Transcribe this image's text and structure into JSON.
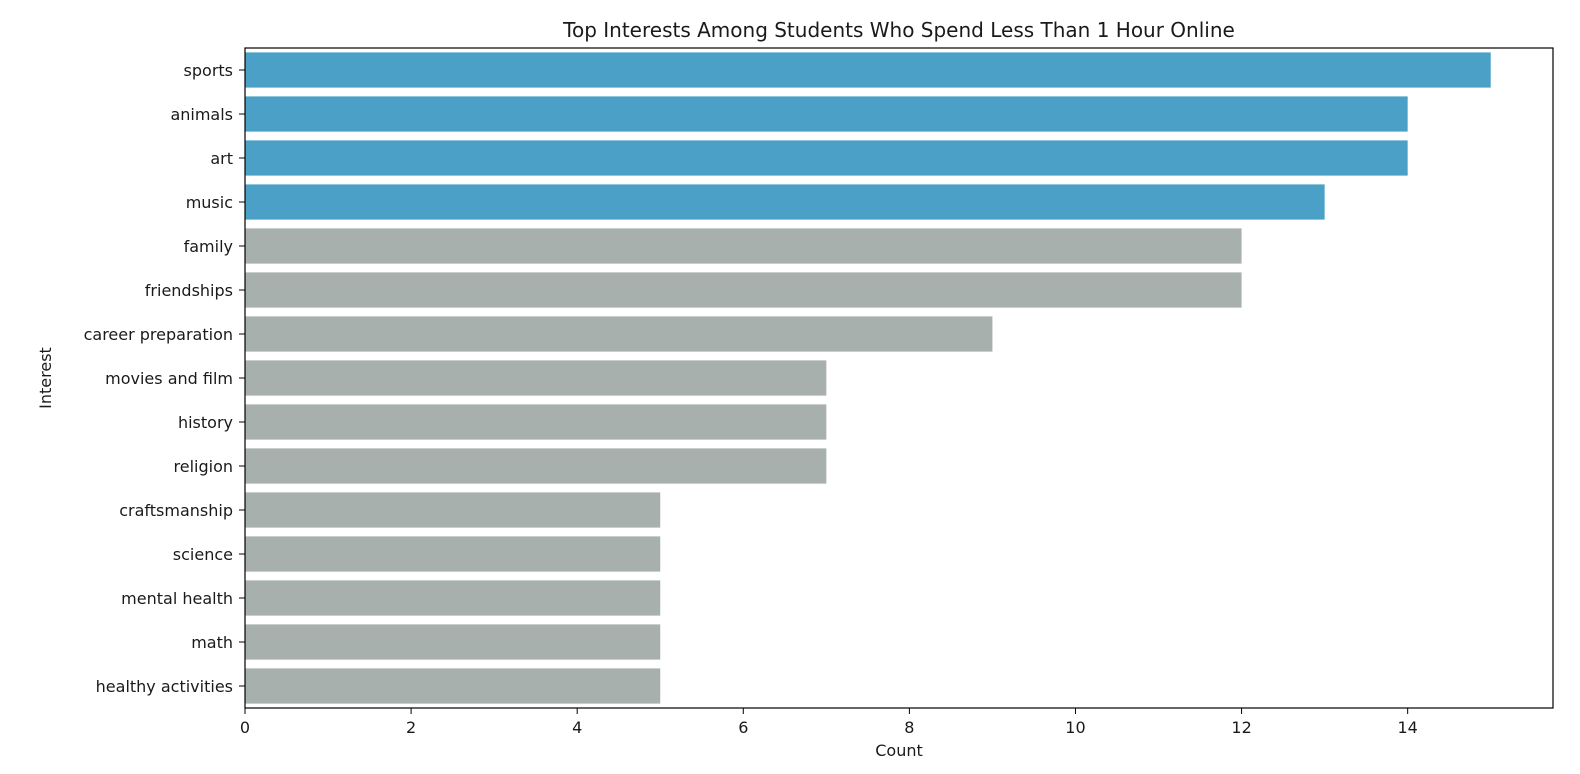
{
  "chart_data": {
    "type": "bar",
    "orientation": "horizontal",
    "title": "Top Interests Among Students Who Spend Less Than 1 Hour Online",
    "xlabel": "Count",
    "ylabel": "Interest",
    "xlim": [
      0,
      15.75
    ],
    "xticks": [
      0,
      2,
      4,
      6,
      8,
      10,
      12,
      14
    ],
    "grid": false,
    "legend": "none",
    "highlight_color": "#4aa0c6",
    "base_color": "#a8b0ad",
    "highlight_count": 4,
    "categories": [
      "sports",
      "animals",
      "art",
      "music",
      "family",
      "friendships",
      "career preparation",
      "movies and film",
      "history",
      "religion",
      "craftsmanship",
      "science",
      "mental health",
      "math",
      "healthy activities"
    ],
    "values": [
      15,
      14,
      14,
      13,
      12,
      12,
      9,
      7,
      7,
      7,
      5,
      5,
      5,
      5,
      5
    ]
  }
}
